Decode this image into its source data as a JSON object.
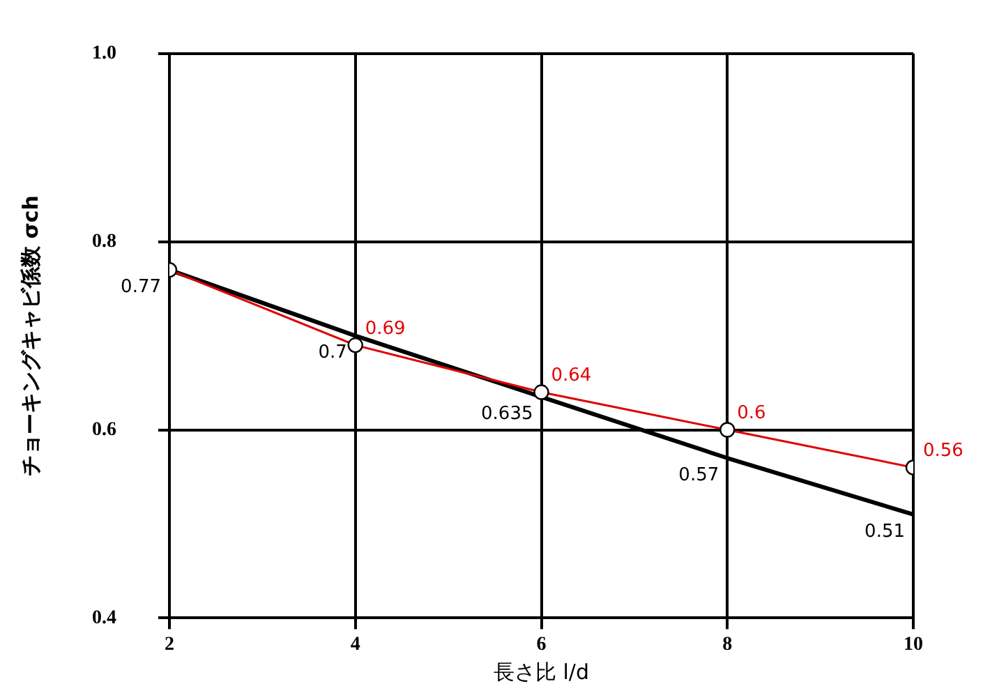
{
  "chart_data": {
    "type": "line",
    "xlabel": "長さ比 l/d",
    "ylabel": "チョーキングキャビ係数 σch",
    "x": [
      2,
      4,
      6,
      8,
      10
    ],
    "series": [
      {
        "color": "#000000",
        "values": [
          0.77,
          0.7,
          0.635,
          0.57,
          0.51
        ],
        "marker": "none",
        "value_labels": [
          "0.77",
          "0.7",
          "0.635",
          "0.57",
          "0.51"
        ]
      },
      {
        "color": "#e00000",
        "values": [
          0.77,
          0.69,
          0.64,
          0.6,
          0.56
        ],
        "marker": "circle",
        "value_labels": [
          null,
          "0.69",
          "0.64",
          "0.6",
          "0.56"
        ]
      }
    ],
    "xlim": [
      2,
      10
    ],
    "xticks": [
      2,
      4,
      6,
      8,
      10
    ],
    "ylim": [
      0.4,
      1.0
    ],
    "yticks": [
      {
        "value": 0.4,
        "label": "0.4"
      },
      {
        "value": 0.6,
        "label": "0.6"
      },
      {
        "value": 0.8,
        "label": "0.8"
      },
      {
        "value": 1,
        "label": "1.0"
      }
    ],
    "grid": true,
    "legend": false
  }
}
